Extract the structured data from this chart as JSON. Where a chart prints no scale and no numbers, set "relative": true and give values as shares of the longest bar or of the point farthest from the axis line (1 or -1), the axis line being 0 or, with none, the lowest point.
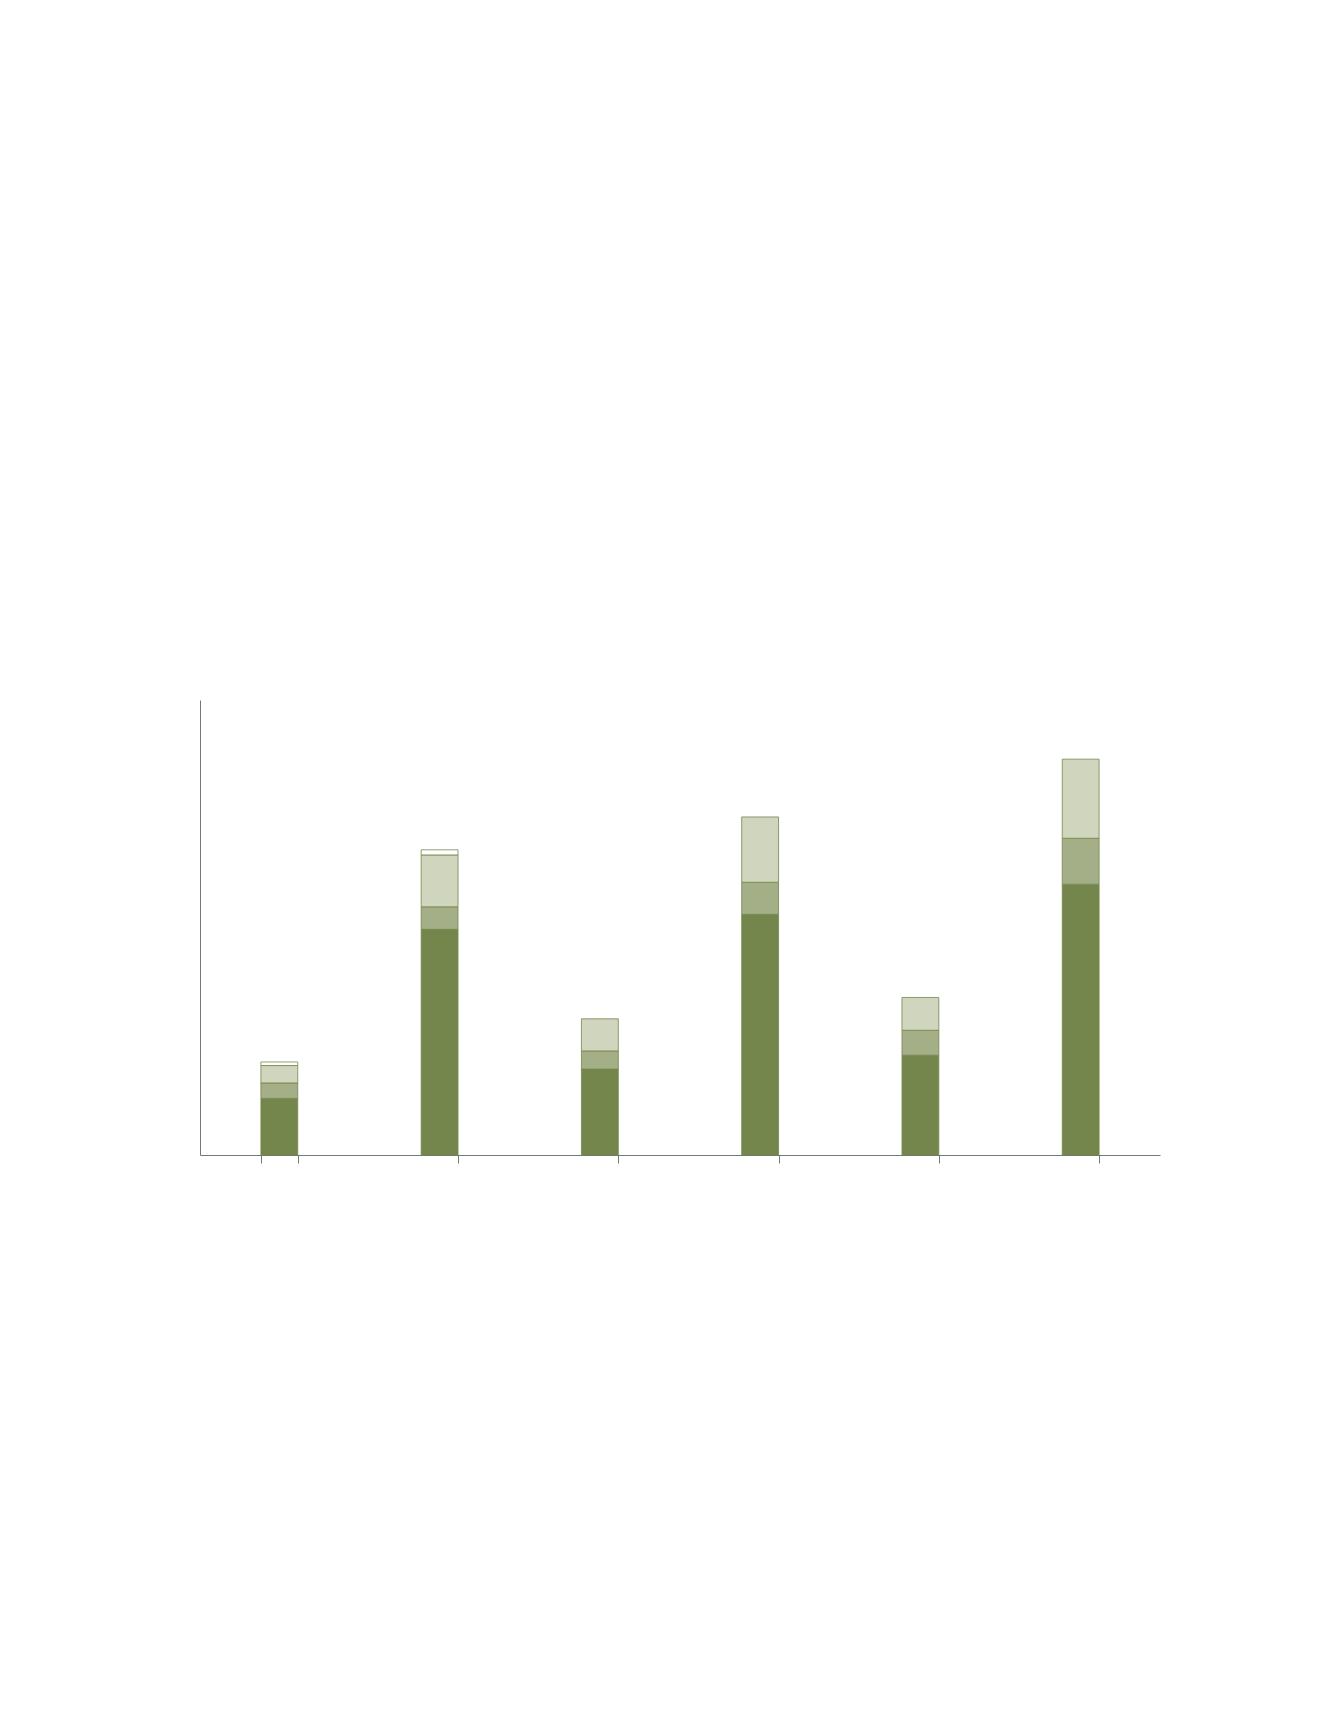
{
  "chart_data": {
    "type": "bar",
    "relative": true,
    "stacked": true,
    "categories": [
      null,
      null,
      null,
      null,
      null,
      null
    ],
    "series": [
      {
        "color": "#74864b",
        "values": [
          0.143,
          0.57,
          0.217,
          0.608,
          0.252,
          0.684
        ]
      },
      {
        "color": "#a4ae87",
        "values": [
          0.039,
          0.057,
          0.046,
          0.081,
          0.063,
          0.116
        ]
      },
      {
        "color": "#d0d5bd",
        "values": [
          0.044,
          0.131,
          0.081,
          0.165,
          0.083,
          0.2
        ]
      },
      {
        "color": "#ffffff",
        "values": [
          0.009,
          0.013,
          null,
          null,
          null,
          null
        ]
      }
    ]
  }
}
